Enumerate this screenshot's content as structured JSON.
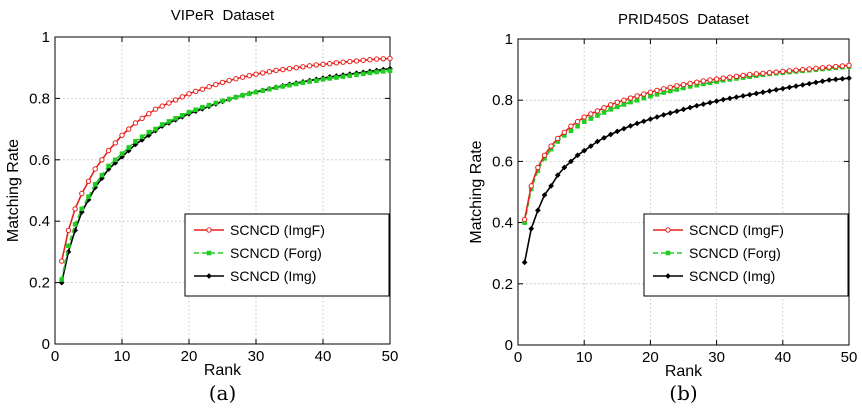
{
  "chart_data": [
    {
      "type": "line",
      "title": "VIPeR  Dataset",
      "xlabel": "Rank",
      "ylabel": "Matching Rate",
      "caption": "(a)",
      "xlim": [
        0,
        50
      ],
      "ylim": [
        0,
        1
      ],
      "xticks": [
        "0",
        "10",
        "20",
        "30",
        "40",
        "50"
      ],
      "yticks": [
        "0",
        "0.2",
        "0.4",
        "0.6",
        "0.8",
        "1"
      ],
      "grid": true,
      "legend_position": "lower-right",
      "series": [
        {
          "name": "SCNCD (ImgF)",
          "color": "#e8201c",
          "marker": "circle",
          "values": [
            0.27,
            0.37,
            0.44,
            0.49,
            0.53,
            0.57,
            0.6,
            0.63,
            0.655,
            0.68,
            0.7,
            0.72,
            0.735,
            0.75,
            0.765,
            0.775,
            0.785,
            0.795,
            0.805,
            0.815,
            0.823,
            0.83,
            0.838,
            0.845,
            0.852,
            0.858,
            0.864,
            0.869,
            0.874,
            0.879,
            0.883,
            0.887,
            0.891,
            0.894,
            0.897,
            0.9,
            0.903,
            0.906,
            0.909,
            0.911,
            0.913,
            0.916,
            0.918,
            0.92,
            0.922,
            0.924,
            0.926,
            0.928,
            0.929,
            0.93
          ]
        },
        {
          "name": "SCNCD (Forg)",
          "color": "#22cc22",
          "marker": "square",
          "values": [
            0.21,
            0.32,
            0.39,
            0.44,
            0.48,
            0.52,
            0.55,
            0.58,
            0.6,
            0.62,
            0.64,
            0.66,
            0.675,
            0.69,
            0.7,
            0.715,
            0.725,
            0.735,
            0.745,
            0.755,
            0.763,
            0.771,
            0.778,
            0.785,
            0.792,
            0.798,
            0.804,
            0.81,
            0.815,
            0.82,
            0.825,
            0.83,
            0.835,
            0.839,
            0.843,
            0.847,
            0.851,
            0.855,
            0.858,
            0.862,
            0.865,
            0.868,
            0.871,
            0.874,
            0.877,
            0.88,
            0.883,
            0.886,
            0.888,
            0.89
          ]
        },
        {
          "name": "SCNCD (Img)",
          "color": "#000000",
          "marker": "diamond",
          "values": [
            0.2,
            0.3,
            0.37,
            0.43,
            0.47,
            0.51,
            0.54,
            0.57,
            0.59,
            0.61,
            0.63,
            0.65,
            0.665,
            0.68,
            0.695,
            0.71,
            0.72,
            0.73,
            0.74,
            0.75,
            0.758,
            0.766,
            0.774,
            0.782,
            0.79,
            0.797,
            0.804,
            0.81,
            0.816,
            0.821,
            0.826,
            0.831,
            0.836,
            0.841,
            0.846,
            0.85,
            0.854,
            0.858,
            0.862,
            0.866,
            0.87,
            0.873,
            0.876,
            0.879,
            0.882,
            0.885,
            0.888,
            0.891,
            0.894,
            0.897
          ]
        }
      ]
    },
    {
      "type": "line",
      "title": "PRID450S  Dataset",
      "xlabel": "Rank",
      "ylabel": "Matching Rate",
      "caption": "(b)",
      "xlim": [
        0,
        50
      ],
      "ylim": [
        0,
        1
      ],
      "xticks": [
        "0",
        "10",
        "20",
        "30",
        "40",
        "50"
      ],
      "yticks": [
        "0",
        "0.2",
        "0.4",
        "0.6",
        "0.8",
        "1"
      ],
      "grid": true,
      "legend_position": "lower-right",
      "series": [
        {
          "name": "SCNCD (ImgF)",
          "color": "#e8201c",
          "marker": "circle",
          "values": [
            0.41,
            0.52,
            0.58,
            0.62,
            0.65,
            0.675,
            0.695,
            0.715,
            0.73,
            0.745,
            0.755,
            0.765,
            0.775,
            0.785,
            0.793,
            0.8,
            0.807,
            0.814,
            0.82,
            0.826,
            0.832,
            0.837,
            0.842,
            0.847,
            0.851,
            0.855,
            0.859,
            0.863,
            0.866,
            0.869,
            0.872,
            0.875,
            0.878,
            0.881,
            0.884,
            0.886,
            0.888,
            0.89,
            0.892,
            0.894,
            0.896,
            0.898,
            0.9,
            0.902,
            0.904,
            0.906,
            0.908,
            0.91,
            0.912,
            0.914
          ]
        },
        {
          "name": "SCNCD (Forg)",
          "color": "#22cc22",
          "marker": "square",
          "values": [
            0.4,
            0.51,
            0.57,
            0.61,
            0.64,
            0.665,
            0.685,
            0.7,
            0.715,
            0.73,
            0.74,
            0.75,
            0.76,
            0.77,
            0.778,
            0.786,
            0.794,
            0.8,
            0.807,
            0.813,
            0.819,
            0.825,
            0.83,
            0.835,
            0.84,
            0.845,
            0.849,
            0.853,
            0.857,
            0.861,
            0.865,
            0.868,
            0.871,
            0.874,
            0.877,
            0.88,
            0.883,
            0.886,
            0.888,
            0.89,
            0.892,
            0.894,
            0.896,
            0.898,
            0.9,
            0.902,
            0.904,
            0.906,
            0.908,
            0.91
          ]
        },
        {
          "name": "SCNCD (Img)",
          "color": "#000000",
          "marker": "diamond",
          "values": [
            0.27,
            0.38,
            0.44,
            0.49,
            0.52,
            0.555,
            0.58,
            0.6,
            0.62,
            0.635,
            0.65,
            0.665,
            0.677,
            0.688,
            0.698,
            0.707,
            0.716,
            0.724,
            0.731,
            0.738,
            0.745,
            0.752,
            0.758,
            0.764,
            0.77,
            0.776,
            0.782,
            0.787,
            0.792,
            0.797,
            0.802,
            0.806,
            0.81,
            0.814,
            0.818,
            0.822,
            0.826,
            0.83,
            0.834,
            0.838,
            0.842,
            0.846,
            0.85,
            0.854,
            0.858,
            0.862,
            0.866,
            0.868,
            0.87,
            0.872
          ]
        }
      ]
    }
  ]
}
